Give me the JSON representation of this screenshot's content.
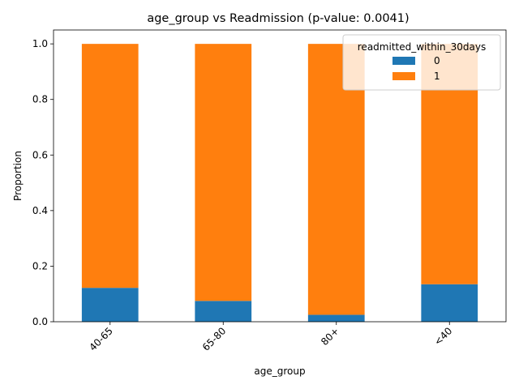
{
  "chart_data": {
    "type": "bar",
    "stacked": true,
    "title": "age_group vs Readmission (p-value: 0.0041)",
    "xlabel": "age_group",
    "ylabel": "Proportion",
    "categories": [
      "40-65",
      "65-80",
      "80+",
      "<40"
    ],
    "series": [
      {
        "name": "0",
        "color": "#1f77b4",
        "values": [
          0.122,
          0.075,
          0.025,
          0.135
        ]
      },
      {
        "name": "1",
        "color": "#ff7f0e",
        "values": [
          0.878,
          0.925,
          0.975,
          0.865
        ]
      }
    ],
    "ylim": [
      0,
      1.05
    ],
    "yticks": [
      0.0,
      0.2,
      0.4,
      0.6,
      0.8,
      1.0
    ],
    "ytick_labels": [
      "0.0",
      "0.2",
      "0.4",
      "0.6",
      "0.8",
      "1.0"
    ],
    "legend": {
      "title": "readmitted_within_30days",
      "placement": "top-right"
    },
    "grid": false
  }
}
